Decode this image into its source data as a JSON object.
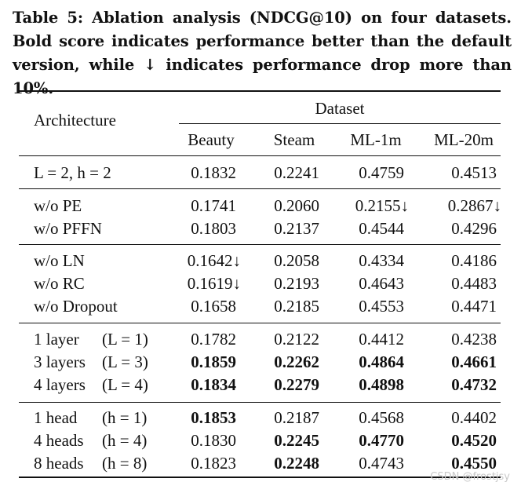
{
  "caption": "Table 5: Ablation analysis (NDCG@10) on four datasets. Bold score indicates performance better than the default version, while ↓ indicates performance drop more than 10%.",
  "header": {
    "architecture": "Architecture",
    "dataset": "Dataset",
    "columns": [
      "Beauty",
      "Steam",
      "ML-1m",
      "ML-20m"
    ]
  },
  "rows": [
    {
      "label": "L = 2, h = 2",
      "values": [
        "0.1832",
        "0.2241",
        "0.4759",
        "0.4513"
      ]
    },
    {
      "label": "w/o PE",
      "values": [
        "0.1741",
        "0.2060",
        "0.2155↓",
        "0.2867↓"
      ]
    },
    {
      "label": "w/o PFFN",
      "values": [
        "0.1803",
        "0.2137",
        "0.4544",
        "0.4296"
      ]
    },
    {
      "label": "w/o LN",
      "values": [
        "0.1642↓",
        "0.2058",
        "0.4334",
        "0.4186"
      ]
    },
    {
      "label": "w/o RC",
      "values": [
        "0.1619↓",
        "0.2193",
        "0.4643",
        "0.4483"
      ]
    },
    {
      "label": "w/o Dropout",
      "values": [
        "0.1658",
        "0.2185",
        "0.4553",
        "0.4471"
      ]
    },
    {
      "label": "1 layer",
      "paren": "(L = 1)",
      "values": [
        "0.1782",
        "0.2122",
        "0.4412",
        "0.4238"
      ]
    },
    {
      "label": "3 layers",
      "paren": "(L = 3)",
      "values": [
        "0.1859",
        "0.2262",
        "0.4864",
        "0.4661"
      ],
      "bold": [
        true,
        true,
        true,
        true
      ]
    },
    {
      "label": "4 layers",
      "paren": "(L = 4)",
      "values": [
        "0.1834",
        "0.2279",
        "0.4898",
        "0.4732"
      ],
      "bold": [
        true,
        true,
        true,
        true
      ]
    },
    {
      "label": "1 head",
      "paren": "(h = 1)",
      "values": [
        "0.1853",
        "0.2187",
        "0.4568",
        "0.4402"
      ],
      "bold": [
        true,
        false,
        false,
        false
      ]
    },
    {
      "label": "4 heads",
      "paren": "(h = 4)",
      "values": [
        "0.1830",
        "0.2245",
        "0.4770",
        "0.4520"
      ],
      "bold": [
        false,
        true,
        true,
        true
      ]
    },
    {
      "label": "8 heads",
      "paren": "(h = 8)",
      "values": [
        "0.1823",
        "0.2248",
        "0.4743",
        "0.4550"
      ],
      "bold": [
        false,
        true,
        false,
        true
      ]
    }
  ],
  "watermark": "CSDN @frostjsy"
}
